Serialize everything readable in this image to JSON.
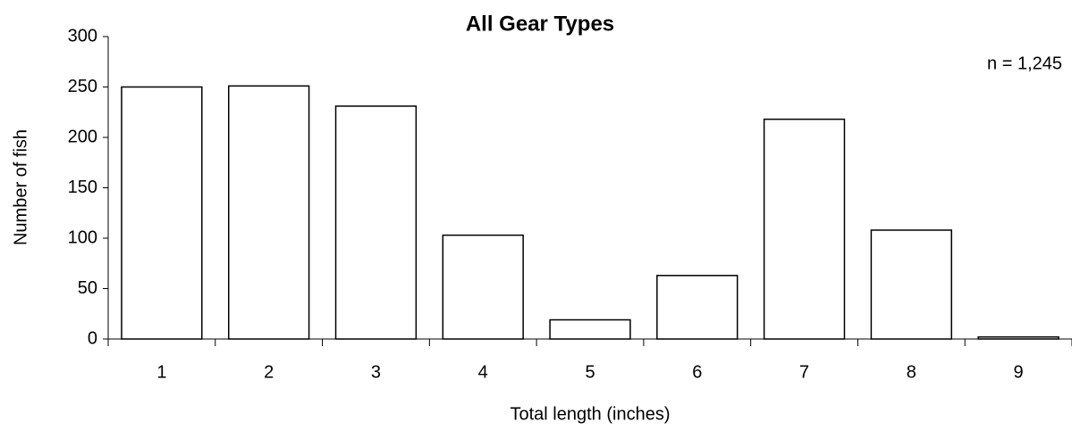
{
  "chart_data": {
    "type": "bar",
    "title": "All Gear Types",
    "x_label": "Total length (inches)",
    "y_label": "Number of fish",
    "annotation": "n = 1,245",
    "categories": [
      "1",
      "2",
      "3",
      "4",
      "5",
      "6",
      "7",
      "8",
      "9"
    ],
    "values": [
      250,
      251,
      231,
      103,
      19,
      63,
      218,
      108,
      2
    ],
    "color": "#ffffff",
    "edge_color": "#000000",
    "ylim": [
      0,
      300
    ],
    "yticks": [
      0,
      50,
      100,
      150,
      200,
      250,
      300
    ],
    "grid": false
  }
}
